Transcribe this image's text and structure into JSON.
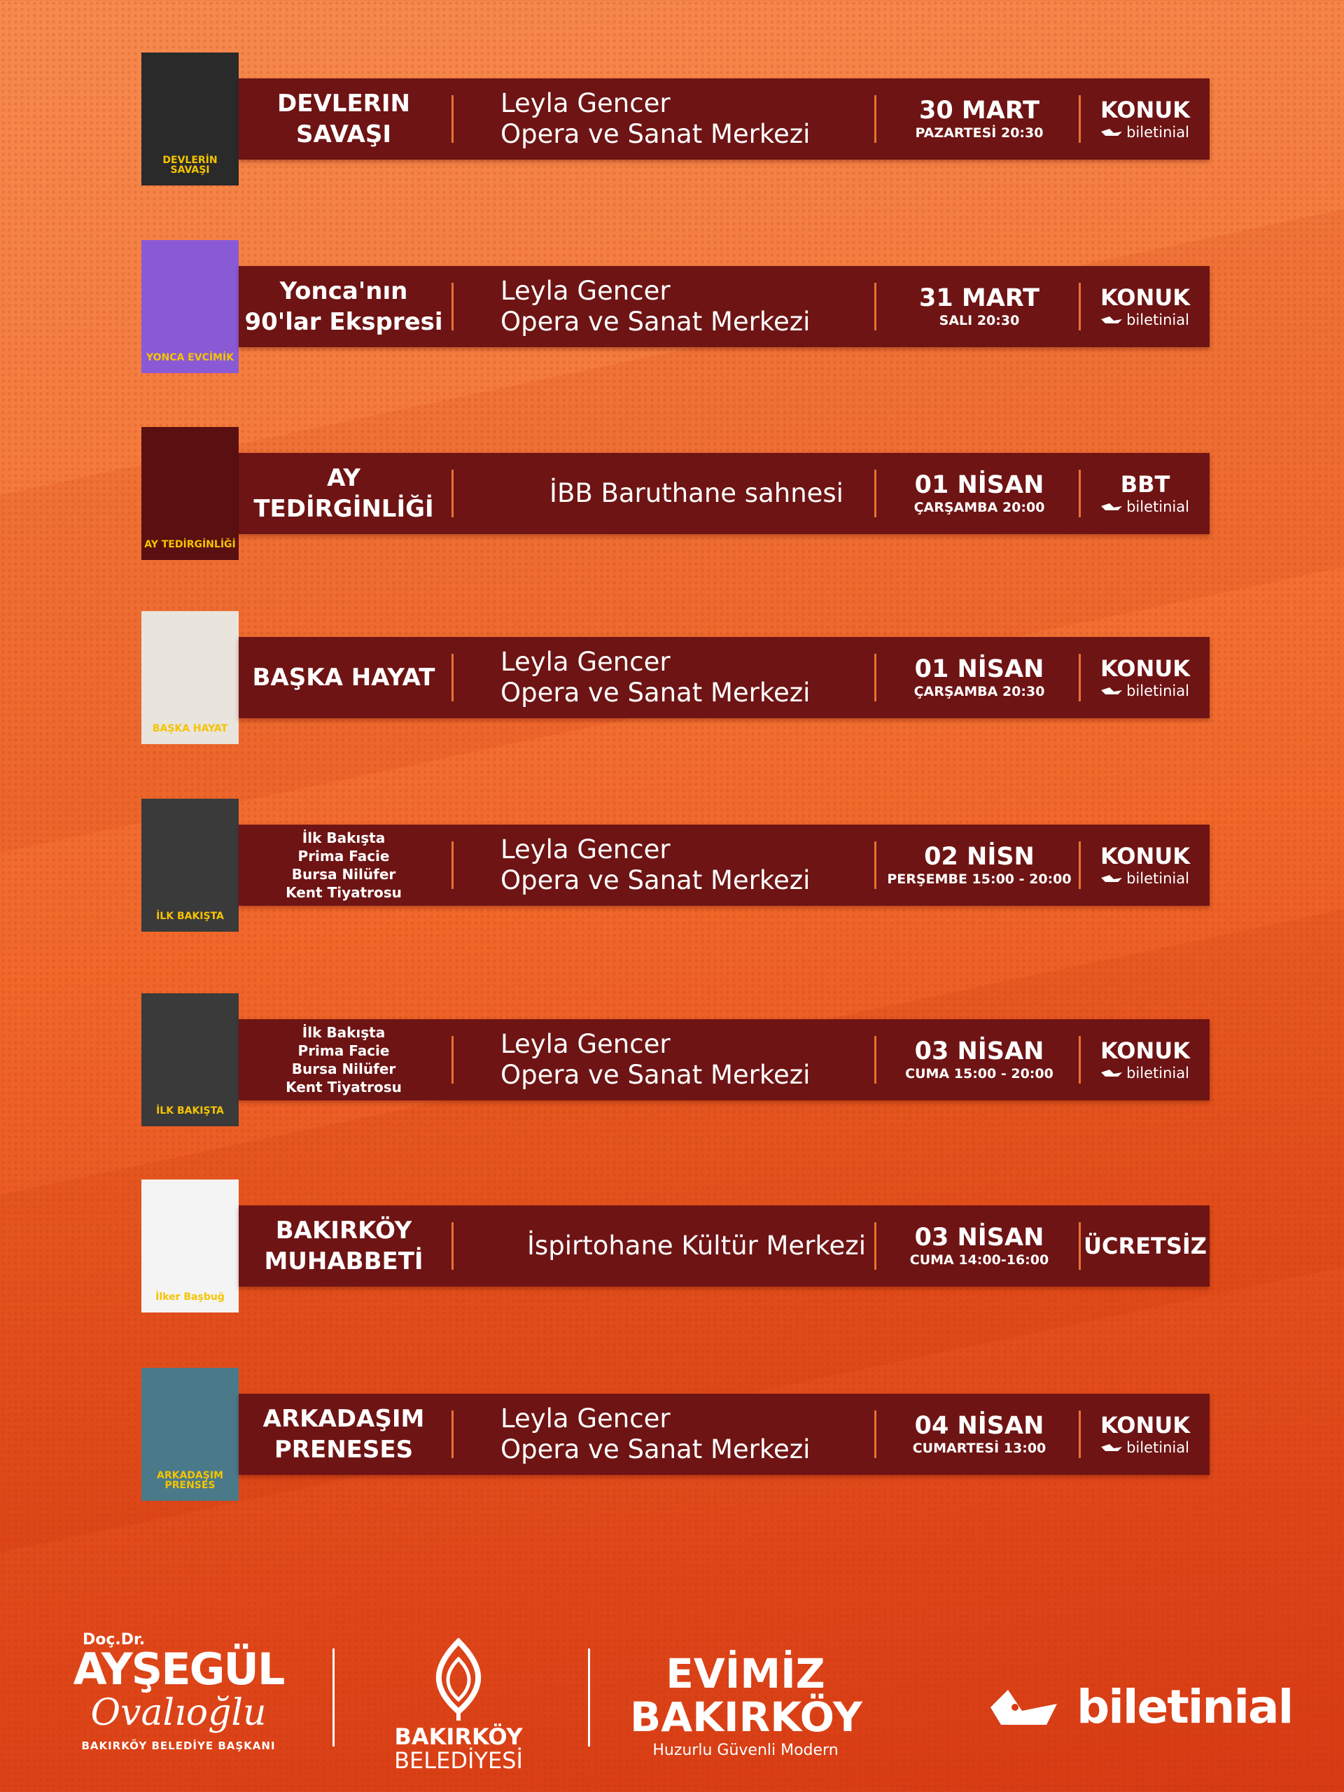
{
  "colors": {
    "bar": "#6e1414",
    "separator": "#e8732e",
    "background_top": "#f68a4f",
    "background_bottom": "#d63a14"
  },
  "events": [
    {
      "title": [
        "DEVLERIN",
        "SAVAŞI"
      ],
      "poster_text": "DEVLERİN SAVAŞI",
      "poster_bg": "#2a2a2a",
      "venue": [
        "Leyla Gencer",
        "Opera ve Sanat Merkezi"
      ],
      "date": "30 MART",
      "time": "PAZARTESİ 20:30",
      "ticket": "KONUK",
      "ticket_brand": "biletinial"
    },
    {
      "title": [
        "Yonca'nın",
        "90'lar Ekspresi"
      ],
      "poster_text": "YONCA EVCİMİK",
      "poster_bg": "#8a5ad6",
      "venue": [
        "Leyla Gencer",
        "Opera ve Sanat Merkezi"
      ],
      "date": "31 MART",
      "time": "SALI 20:30",
      "ticket": "KONUK",
      "ticket_brand": "biletinial"
    },
    {
      "title": [
        "AY",
        "TEDİRGİNLİĞİ"
      ],
      "poster_text": "AY TEDİRGİNLİĞİ",
      "poster_bg": "#5a1010",
      "venue": [
        "İBB Baruthane sahnesi"
      ],
      "date": "01 NİSAN",
      "time": "ÇARŞAMBA 20:00",
      "ticket": "BBT",
      "ticket_brand": "biletinial"
    },
    {
      "title": [
        "BAŞKA HAYAT"
      ],
      "poster_text": "BAŞKA HAYAT",
      "poster_bg": "#e9e4dc",
      "venue": [
        "Leyla Gencer",
        "Opera ve Sanat Merkezi"
      ],
      "date": "01 NİSAN",
      "time": "ÇARŞAMBA 20:30",
      "ticket": "KONUK",
      "ticket_brand": "biletinial"
    },
    {
      "title": [
        "İlk Bakışta",
        "Prima Facie",
        "Bursa Nilüfer",
        "Kent Tiyatrosu"
      ],
      "poster_text": "İLK BAKIŞTA",
      "poster_bg": "#3a3a3a",
      "venue": [
        "Leyla Gencer",
        "Opera ve Sanat Merkezi"
      ],
      "date": "02 NİSN",
      "time": "PERŞEMBE 15:00 - 20:00",
      "ticket": "KONUK",
      "ticket_brand": "biletinial"
    },
    {
      "title": [
        "İlk Bakışta",
        "Prima Facie",
        "Bursa Nilüfer",
        "Kent Tiyatrosu"
      ],
      "poster_text": "İLK BAKIŞTA",
      "poster_bg": "#3a3a3a",
      "venue": [
        "Leyla Gencer",
        "Opera ve Sanat Merkezi"
      ],
      "date": "03 NİSAN",
      "time": "CUMA 15:00 - 20:00",
      "ticket": "KONUK",
      "ticket_brand": "biletinial"
    },
    {
      "title": [
        "BAKIRKÖY",
        "MUHABBETİ"
      ],
      "poster_text": "İlker Başbuğ",
      "poster_bg": "#f4f4f4",
      "venue": [
        "İspirtohane Kültür Merkezi"
      ],
      "date": "03 NİSAN",
      "time": "CUMA 14:00-16:00",
      "ticket": "ÜCRETSİZ",
      "ticket_brand": ""
    },
    {
      "title": [
        "ARKADAŞIM",
        "PRENESES"
      ],
      "poster_text": "ARKADAŞIM PRENSES",
      "poster_bg": "#4a7a8a",
      "venue": [
        "Leyla Gencer",
        "Opera ve Sanat Merkezi"
      ],
      "date": "04 NİSAN",
      "time": "CUMARTESİ 13:00",
      "ticket": "KONUK",
      "ticket_brand": "biletinial"
    }
  ],
  "footer": {
    "mayor_title": "Doç.Dr.",
    "mayor_first": "AYŞEGÜL",
    "mayor_last": "Ovalıoğlu",
    "mayor_role": "BAKIRKÖY BELEDİYE BAŞKANI",
    "municipality_line1": "BAKIRKÖY",
    "municipality_line2": "BELEDİYESİ",
    "slogan_line1": "EVİMİZ",
    "slogan_line2": "BAKIRKÖY",
    "slogan_sub": "Huzurlu Güvenli Modern",
    "brand": "biletinial"
  }
}
